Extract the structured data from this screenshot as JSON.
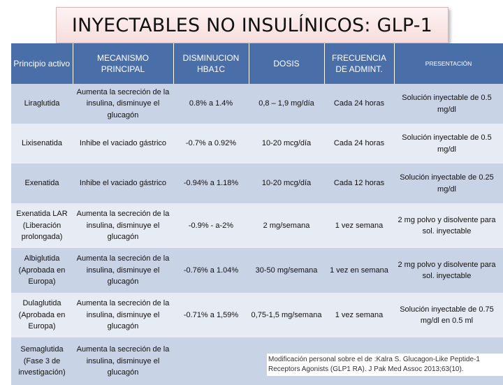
{
  "title": "INYECTABLES NO INSULÍNICOS: GLP-1",
  "headers": {
    "principio": "Principio activo",
    "mecanismo": "MECANISMO PRINCIPAL",
    "disminucion": "DISMINUCION HBA1C",
    "dosis": "DOSIS",
    "frecuencia": "FRECUENCIA DE ADMINT.",
    "presentacion": "PRESENTACIÓN"
  },
  "rows": [
    {
      "principio": "Liraglutida",
      "mecanismo": "Aumenta la secreción de la insulina, disminuye el glucagón",
      "disminucion": "0.8% a 1.4%",
      "dosis": "0,8 – 1,9 mg/día",
      "frecuencia": "Cada 24 horas",
      "presentacion": "Solución inyectable de 0.5 mg/dl"
    },
    {
      "principio": "Lixisenatida",
      "mecanismo": "Inhibe el vaciado gástrico",
      "disminucion": "-0.7% a 0.92%",
      "dosis": "10-20 mcg/día",
      "frecuencia": "Cada 24 horas",
      "presentacion": "Solución inyectable de 0.5 mg/dl"
    },
    {
      "principio": "Exenatida",
      "mecanismo": "Inhibe el vaciado gástrico",
      "disminucion": "-0.94% a 1.18%",
      "dosis": "10-20 mcg/día",
      "frecuencia": "Cada 12 horas",
      "presentacion": "Solución inyectable de 0.25 mg/dl"
    },
    {
      "principio": "Exenatida LAR (Liberación prolongada)",
      "mecanismo": "Aumenta la secreción de la insulina, disminuye el glucagón",
      "disminucion": "-0.9% - a-2%",
      "dosis": "2 mg/semana",
      "frecuencia": "1 vez semana",
      "presentacion": "2 mg polvo y disolvente para sol. inyectable"
    },
    {
      "principio": "Albiglutida (Aprobada en Europa)",
      "mecanismo": "Aumenta la secreción de la insulina, disminuye el glucagón",
      "disminucion": "-0.76% a 1.04%",
      "dosis": "30-50 mg/semana",
      "frecuencia": "1 vez en semana",
      "presentacion": "2 mg polvo y disolvente para sol. inyectable"
    },
    {
      "principio": "Dulaglutida (Aprobada en Europa)",
      "mecanismo": "Aumenta la secreción de la insulina, disminuye el glucagón",
      "disminucion": "-0.71% a 1,59%",
      "dosis": "0,75-1,5 mg/semana",
      "frecuencia": "1 vez semana",
      "presentacion": "Solución inyectable de 0.75 mg/dl en 0.5 ml"
    },
    {
      "principio": "Semaglutida (Fase 3 de investigación)",
      "mecanismo": "Aumenta la secreción de la insulina, disminuye el glucagón",
      "disminucion": "",
      "dosis": "",
      "frecuencia": "",
      "presentacion": ""
    }
  ],
  "footnote": "Modificación personal sobre el de :Kalra S. Glucagon-Like Peptide-1 Receptors Agonists (GLP1 RA). J Pak Med Assoc 2013;63(10).",
  "colors": {
    "header": "#4a6fa8",
    "row_odd": "#c9d3e6",
    "row_even": "#e7ebf3",
    "title_bg": "#f7dcdc"
  }
}
